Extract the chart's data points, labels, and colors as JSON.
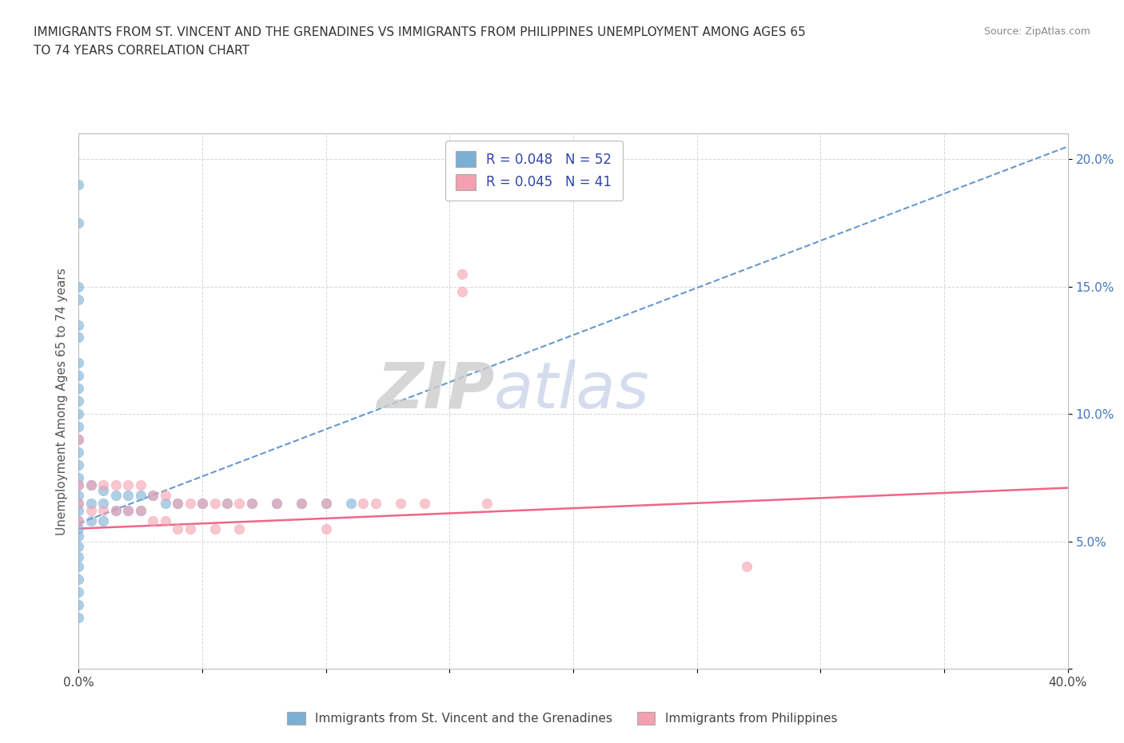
{
  "title_line1": "IMMIGRANTS FROM ST. VINCENT AND THE GRENADINES VS IMMIGRANTS FROM PHILIPPINES UNEMPLOYMENT AMONG AGES 65",
  "title_line2": "TO 74 YEARS CORRELATION CHART",
  "source": "Source: ZipAtlas.com",
  "ylabel": "Unemployment Among Ages 65 to 74 years",
  "xlim": [
    0.0,
    0.4
  ],
  "ylim": [
    0.0,
    0.21
  ],
  "blue_color": "#7BAFD4",
  "pink_color": "#F4A0B0",
  "watermark_zip": "ZIP",
  "watermark_atlas": "atlas",
  "legend_label1": "R = 0.048   N = 52",
  "legend_label2": "R = 0.045   N = 41",
  "bottom_label1": "Immigrants from St. Vincent and the Grenadines",
  "bottom_label2": "Immigrants from Philippines",
  "blue_trend_x": [
    0.0,
    0.4
  ],
  "blue_trend_y": [
    0.057,
    0.205
  ],
  "pink_trend_x": [
    0.0,
    0.4
  ],
  "pink_trend_y": [
    0.055,
    0.071
  ],
  "blue_x": [
    0.0,
    0.0,
    0.0,
    0.0,
    0.0,
    0.0,
    0.0,
    0.0,
    0.0,
    0.0,
    0.0,
    0.0,
    0.0,
    0.0,
    0.0,
    0.0,
    0.0,
    0.0,
    0.0,
    0.0,
    0.0,
    0.0,
    0.0,
    0.0,
    0.0,
    0.0,
    0.0,
    0.0,
    0.0,
    0.0,
    0.005,
    0.005,
    0.005,
    0.01,
    0.01,
    0.01,
    0.015,
    0.015,
    0.02,
    0.02,
    0.025,
    0.025,
    0.03,
    0.035,
    0.04,
    0.05,
    0.06,
    0.07,
    0.08,
    0.09,
    0.1,
    0.11
  ],
  "blue_y": [
    0.19,
    0.175,
    0.15,
    0.145,
    0.135,
    0.13,
    0.12,
    0.115,
    0.11,
    0.105,
    0.1,
    0.095,
    0.09,
    0.085,
    0.08,
    0.075,
    0.072,
    0.068,
    0.065,
    0.062,
    0.058,
    0.055,
    0.052,
    0.048,
    0.044,
    0.04,
    0.035,
    0.03,
    0.025,
    0.02,
    0.072,
    0.065,
    0.058,
    0.07,
    0.065,
    0.058,
    0.068,
    0.062,
    0.068,
    0.062,
    0.068,
    0.062,
    0.068,
    0.065,
    0.065,
    0.065,
    0.065,
    0.065,
    0.065,
    0.065,
    0.065,
    0.065
  ],
  "pink_x": [
    0.0,
    0.0,
    0.0,
    0.0,
    0.005,
    0.005,
    0.01,
    0.01,
    0.015,
    0.015,
    0.02,
    0.02,
    0.025,
    0.025,
    0.03,
    0.03,
    0.035,
    0.035,
    0.04,
    0.04,
    0.045,
    0.045,
    0.05,
    0.055,
    0.055,
    0.06,
    0.065,
    0.065,
    0.07,
    0.08,
    0.09,
    0.1,
    0.1,
    0.115,
    0.12,
    0.13,
    0.14,
    0.155,
    0.155,
    0.165,
    0.27
  ],
  "pink_y": [
    0.09,
    0.072,
    0.065,
    0.058,
    0.072,
    0.062,
    0.072,
    0.062,
    0.072,
    0.062,
    0.072,
    0.062,
    0.072,
    0.062,
    0.068,
    0.058,
    0.068,
    0.058,
    0.065,
    0.055,
    0.065,
    0.055,
    0.065,
    0.065,
    0.055,
    0.065,
    0.065,
    0.055,
    0.065,
    0.065,
    0.065,
    0.065,
    0.055,
    0.065,
    0.065,
    0.065,
    0.065,
    0.155,
    0.148,
    0.065,
    0.04
  ]
}
